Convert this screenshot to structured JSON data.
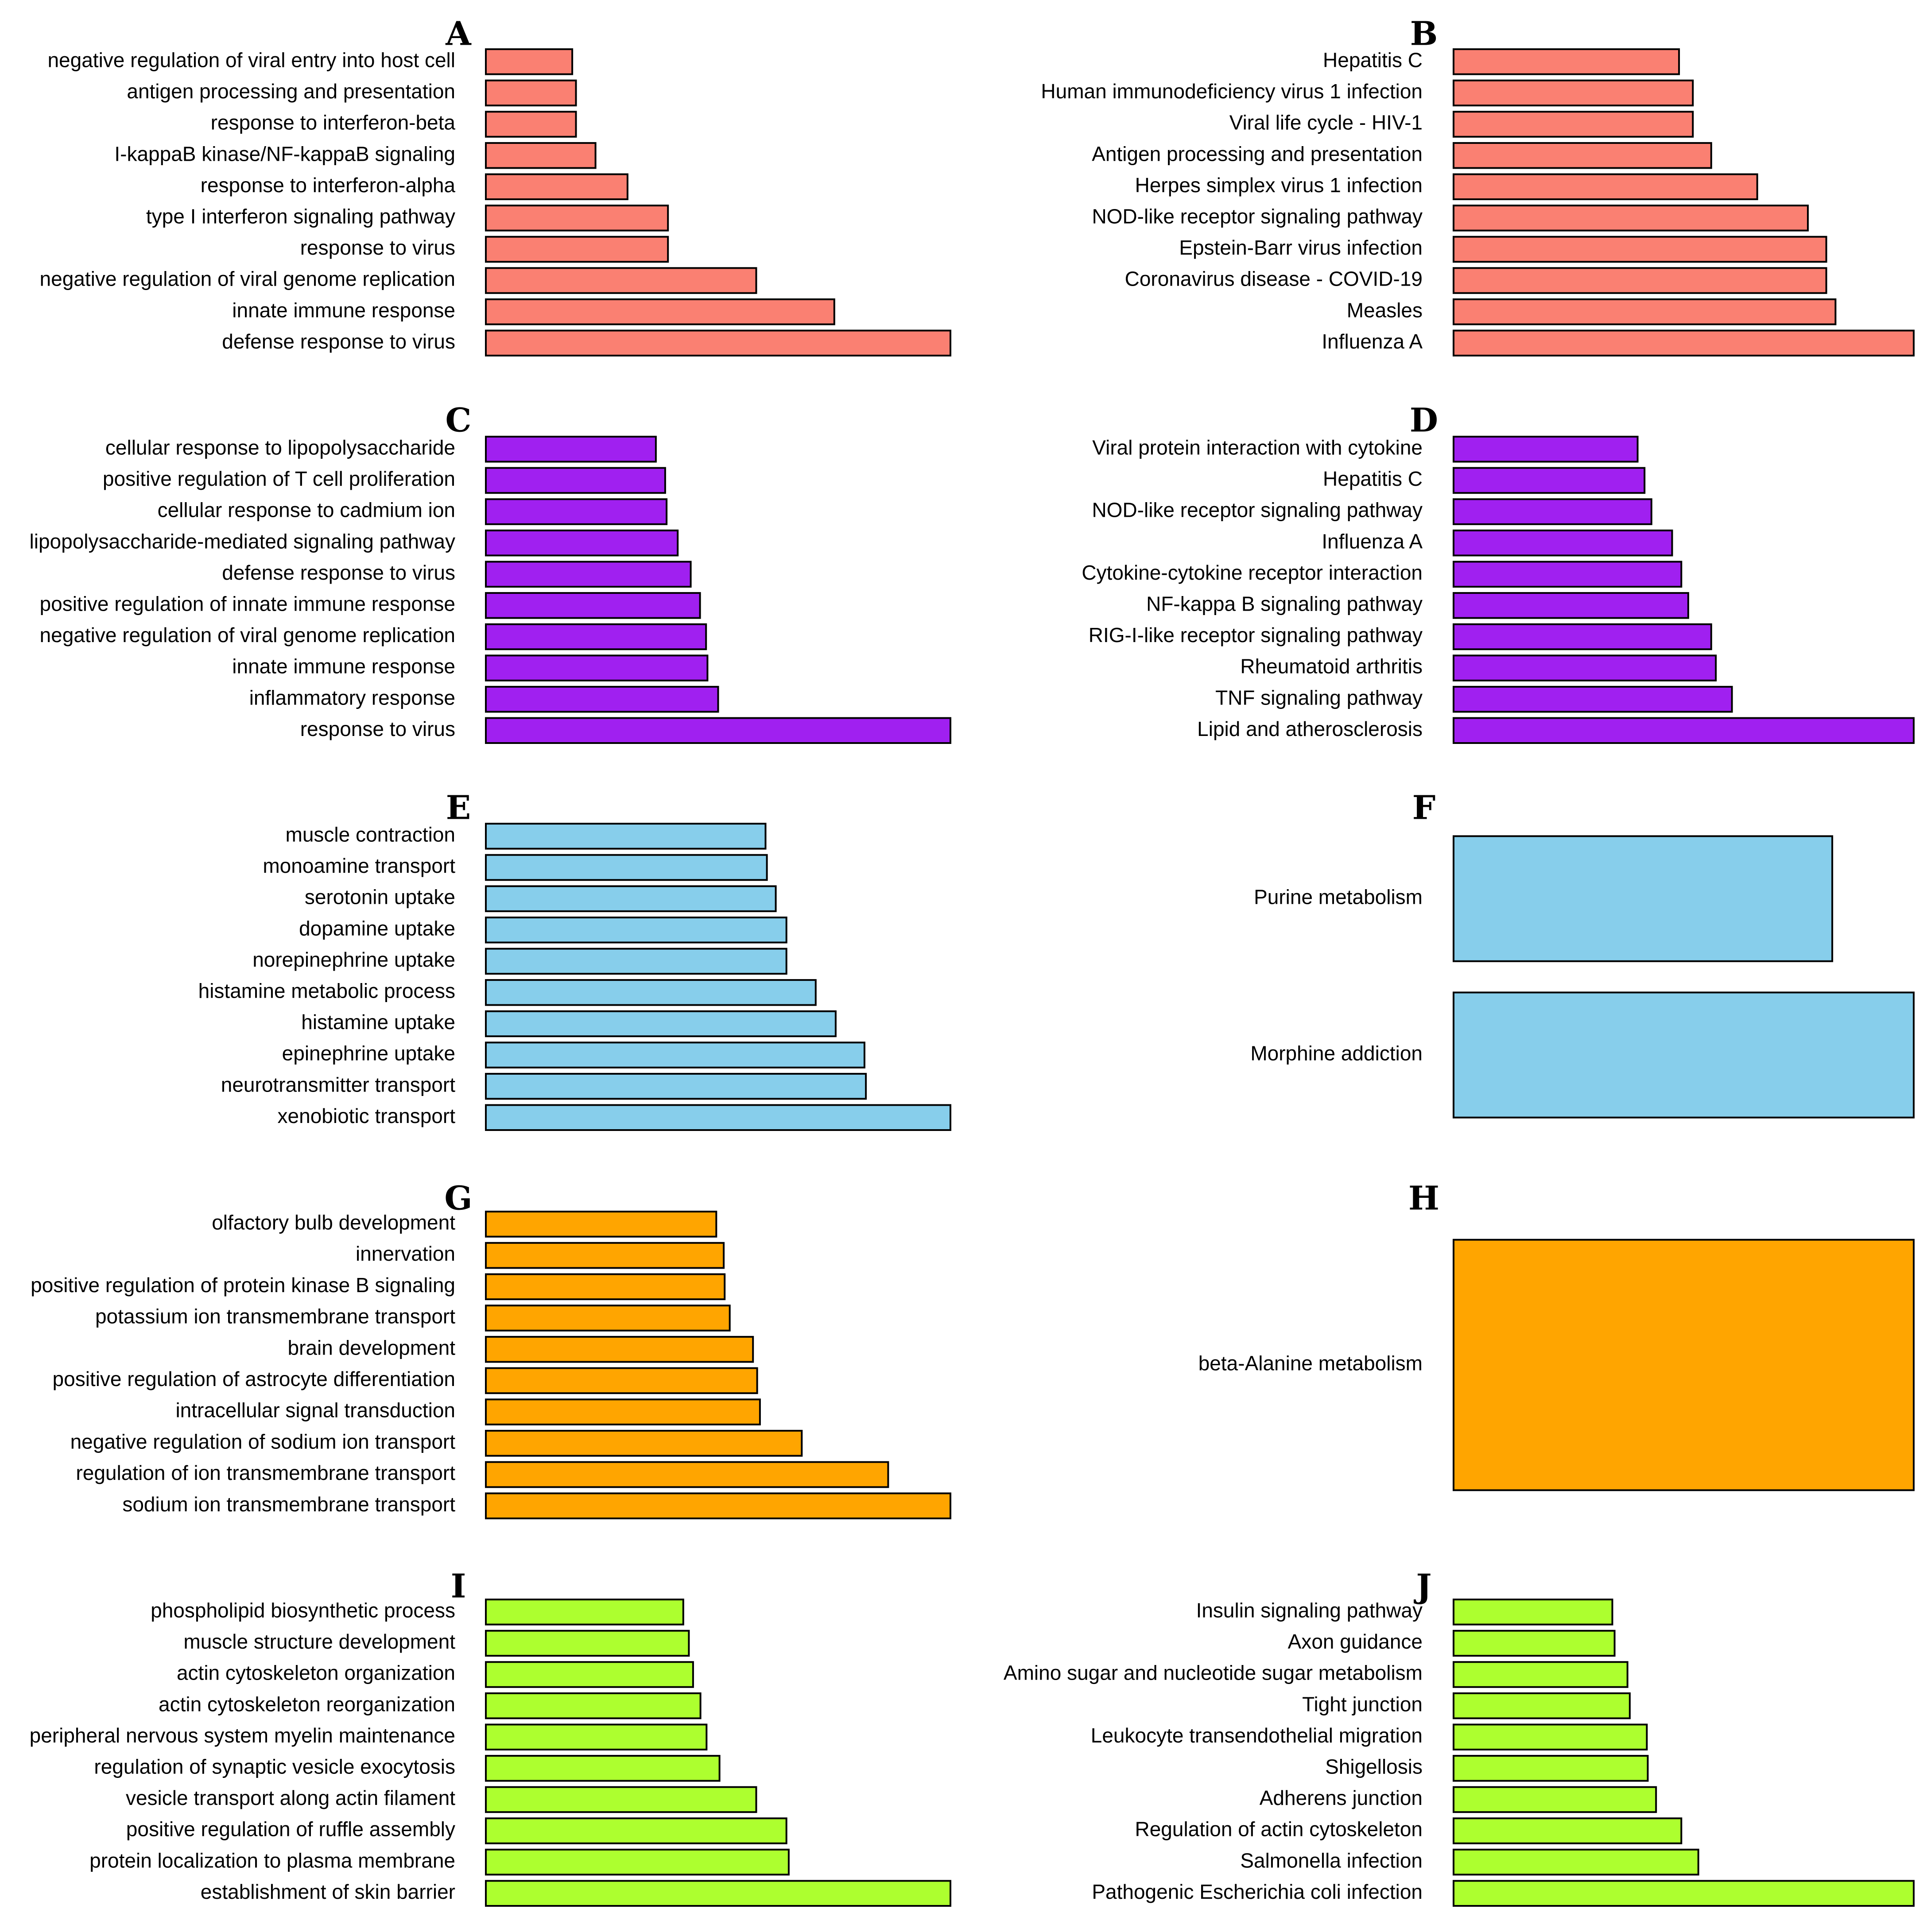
{
  "colors": {
    "red": "#FA8072",
    "purple": "#A020F0",
    "blue": "#87CEEB",
    "orange": "#FFA500",
    "green": "#ADFF2F"
  },
  "chart_data": [
    {
      "panel": "A",
      "type": "bar",
      "orientation": "horizontal",
      "color": "red",
      "categories": [
        "negative regulation of viral entry into host cell",
        "antigen processing and presentation",
        "response to interferon-beta",
        "I-kappaB kinase/NF-kappaB signaling",
        "response to interferon-alpha",
        "type I interferon signaling pathway",
        "response to virus",
        "negative regulation of viral genome replication",
        "innate immune response",
        "defense response to virus"
      ],
      "values": [
        0.186,
        0.194,
        0.194,
        0.236,
        0.305,
        0.392,
        0.392,
        0.582,
        0.75,
        1.0
      ],
      "xlim": [
        0,
        1
      ]
    },
    {
      "panel": "B",
      "type": "bar",
      "orientation": "horizontal",
      "color": "red",
      "categories": [
        "Hepatitis C",
        "Human immunodeficiency virus 1 infection",
        "Viral life cycle - HIV-1",
        "Antigen processing and presentation",
        "Herpes simplex virus 1 infection",
        "NOD-like receptor signaling pathway",
        "Epstein-Barr virus infection",
        "Coronavirus disease - COVID-19",
        "Measles",
        "Influenza A"
      ],
      "values": [
        0.49,
        0.52,
        0.52,
        0.56,
        0.66,
        0.77,
        0.81,
        0.81,
        0.83,
        1.0
      ],
      "xlim": [
        0,
        1
      ]
    },
    {
      "panel": "C",
      "type": "bar",
      "orientation": "horizontal",
      "color": "purple",
      "categories": [
        "cellular response to lipopolysaccharide",
        "positive regulation of T cell proliferation",
        "cellular response to cadmium ion",
        "lipopolysaccharide-mediated signaling pathway",
        "defense response to virus",
        "positive regulation of innate immune response",
        "negative regulation of viral genome replication",
        "innate immune response",
        "inflammatory response",
        "response to virus"
      ],
      "values": [
        0.366,
        0.386,
        0.389,
        0.413,
        0.441,
        0.461,
        0.474,
        0.477,
        0.5,
        1.0
      ],
      "xlim": [
        0,
        1
      ]
    },
    {
      "panel": "D",
      "type": "bar",
      "orientation": "horizontal",
      "color": "purple",
      "categories": [
        "Viral protein interaction with cytokine",
        "Hepatitis C",
        "NOD-like receptor signaling pathway",
        "Influenza A",
        "Cytokine-cytokine receptor interaction",
        "NF-kappa B signaling pathway",
        "RIG-I-like receptor signaling pathway",
        "Rheumatoid arthritis",
        "TNF signaling pathway",
        "Lipid and atherosclerosis"
      ],
      "values": [
        0.4,
        0.415,
        0.43,
        0.475,
        0.495,
        0.51,
        0.56,
        0.57,
        0.605,
        1.0
      ],
      "xlim": [
        0,
        1
      ]
    },
    {
      "panel": "E",
      "type": "bar",
      "orientation": "horizontal",
      "color": "blue",
      "categories": [
        "muscle contraction",
        "monoamine transport",
        "serotonin uptake",
        "dopamine uptake",
        "norepinephrine uptake",
        "histamine metabolic process",
        "histamine uptake",
        "epinephrine uptake",
        "neurotransmitter transport",
        "xenobiotic transport"
      ],
      "values": [
        0.602,
        0.605,
        0.624,
        0.647,
        0.647,
        0.71,
        0.753,
        0.815,
        0.818,
        1.0
      ],
      "xlim": [
        0,
        1
      ]
    },
    {
      "panel": "F",
      "type": "bar",
      "orientation": "horizontal",
      "color": "blue",
      "categories": [
        "Purine metabolism",
        "Morphine addiction"
      ],
      "values": [
        0.823,
        1.0
      ],
      "xlim": [
        0,
        1
      ]
    },
    {
      "panel": "G",
      "type": "bar",
      "orientation": "horizontal",
      "color": "orange",
      "categories": [
        "olfactory bulb development",
        "innervation",
        "positive regulation of protein kinase B signaling",
        "potassium ion transmembrane transport",
        "brain development",
        "positive regulation of astrocyte differentiation",
        "intracellular signal transduction",
        "negative regulation of sodium ion transport",
        "regulation of ion transmembrane transport",
        "sodium ion transmembrane transport"
      ],
      "values": [
        0.496,
        0.512,
        0.514,
        0.525,
        0.575,
        0.584,
        0.59,
        0.68,
        0.866,
        1.0
      ],
      "xlim": [
        0,
        1
      ]
    },
    {
      "panel": "H",
      "type": "bar",
      "orientation": "horizontal",
      "color": "orange",
      "categories": [
        "beta-Alanine metabolism"
      ],
      "values": [
        1.0
      ],
      "xlim": [
        0,
        1
      ]
    },
    {
      "panel": "I",
      "type": "bar",
      "orientation": "horizontal",
      "color": "green",
      "categories": [
        "phospholipid biosynthetic process",
        "muscle structure development",
        "actin cytoskeleton organization",
        "actin cytoskeleton reorganization",
        "peripheral nervous system myelin maintenance",
        "regulation of synaptic vesicle exocytosis",
        "vesicle transport along actin filament",
        "positive regulation of ruffle assembly",
        "protein localization to plasma membrane",
        "establishment of skin barrier"
      ],
      "values": [
        0.425,
        0.437,
        0.446,
        0.462,
        0.475,
        0.503,
        0.582,
        0.647,
        0.652,
        1.0
      ],
      "xlim": [
        0,
        1
      ]
    },
    {
      "panel": "J",
      "type": "bar",
      "orientation": "horizontal",
      "color": "green",
      "categories": [
        "Insulin signaling pathway",
        "Axon guidance",
        "Amino sugar and nucleotide sugar metabolism",
        "Tight junction",
        "Leukocyte transendothelial migration",
        "Shigellosis",
        "Adherens junction",
        "Regulation of actin cytoskeleton",
        "Salmonella infection",
        "Pathogenic Escherichia coli infection"
      ],
      "values": [
        0.345,
        0.35,
        0.378,
        0.383,
        0.42,
        0.422,
        0.44,
        0.495,
        0.532,
        1.0
      ],
      "xlim": [
        0,
        1
      ]
    }
  ]
}
